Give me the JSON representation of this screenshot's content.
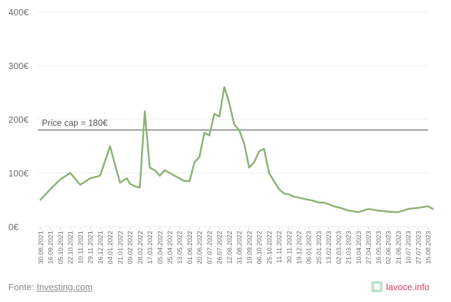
{
  "chart_data": {
    "type": "line",
    "title": "",
    "xlabel": "",
    "ylabel": "",
    "ylim": [
      0,
      400
    ],
    "yticks": [
      "0€",
      "100€",
      "200€",
      "300€",
      "400€"
    ],
    "ytick_values": [
      0,
      100,
      200,
      300,
      400
    ],
    "grid": true,
    "x_tick_labels": [
      "30.08.2021",
      "16.09.2021",
      "05.10.2021",
      "22.10.2021",
      "10.11.2021",
      "29.11.2021",
      "16.12.2021",
      "04.01.2022",
      "21.01.2022",
      "09.02.2022",
      "28.02.2022",
      "17.03.2022",
      "05.04.2022",
      "25.04.2022",
      "13.05.2022",
      "01.06.2022",
      "20.06.2022",
      "07.07.2022",
      "26.07.2022",
      "12.08.2022",
      "31.08.2022",
      "19.09.2022",
      "06.10.2022",
      "25.10.2022",
      "11.11.2022",
      "30.11.2022",
      "19.12.2022",
      "06.01.2023",
      "25.01.2023",
      "13.02.2023",
      "02.03.2023",
      "21.03.2023",
      "10.04.2023",
      "27.04.2023",
      "16.05.2023",
      "02.06.2023",
      "21.06.2023",
      "10.07.2023",
      "27.07.2023",
      "15.08.2023"
    ],
    "reference_line": {
      "value": 180,
      "label": "Price cap = 180€",
      "color": "#7a7a7a"
    },
    "series": [
      {
        "color": "#8db376",
        "x_index": [
          0,
          1,
          2,
          3,
          4,
          5,
          6,
          7,
          8,
          8.7,
          9,
          9.5,
          10,
          10.5,
          11,
          11.5,
          12,
          12.5,
          13,
          13.5,
          14,
          14.5,
          15,
          15.5,
          16,
          16.5,
          17,
          17.5,
          18,
          18.5,
          19,
          19.5,
          20,
          20.5,
          21,
          21.5,
          22,
          22.5,
          23,
          23.5,
          24,
          24.5,
          25,
          25.5,
          26,
          26.5,
          27,
          27.5,
          28,
          28.5,
          29,
          29.5,
          30,
          31,
          32,
          33,
          34,
          35,
          36,
          37,
          38,
          39,
          39.5
        ],
        "values": [
          50,
          70,
          88,
          100,
          78,
          90,
          95,
          150,
          82,
          90,
          80,
          75,
          73,
          215,
          110,
          105,
          95,
          105,
          100,
          95,
          90,
          85,
          85,
          120,
          130,
          175,
          170,
          210,
          205,
          260,
          230,
          190,
          180,
          155,
          110,
          120,
          140,
          145,
          100,
          85,
          70,
          62,
          60,
          56,
          54,
          52,
          50,
          48,
          45,
          45,
          42,
          38,
          36,
          30,
          27,
          33,
          30,
          28,
          27,
          33,
          35,
          38,
          33
        ]
      }
    ]
  },
  "footer": {
    "source_prefix": "Fonte: ",
    "source_link": "Investing.com",
    "brand": "lavoce.info"
  }
}
